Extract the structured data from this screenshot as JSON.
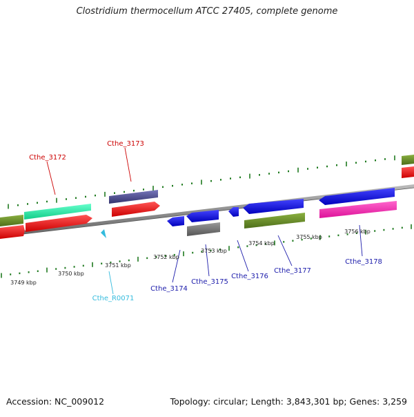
{
  "title": "Clostridium thermocellum ATCC 27405, complete genome",
  "footer": {
    "accession": "Accession: NC_009012",
    "stats": "Topology: circular; Length: 3,843,301 bp; Genes: 3,259"
  },
  "scale_labels": [
    "3749 kbp",
    "3750 kbp",
    "3751 kbp",
    "3752 kbp",
    "3753 kbp",
    "3754 kbp",
    "3755 kbp",
    "3756 kbp"
  ],
  "gene_labels": {
    "cthe_3172": "Cthe_3172",
    "cthe_3173": "Cthe_3173",
    "cthe_R0071": "Cthe_R0071",
    "cthe_3174": "Cthe_3174",
    "cthe_3175": "Cthe_3175",
    "cthe_3176": "Cthe_3176",
    "cthe_3177": "Cthe_3177",
    "cthe_3178": "Cthe_3178"
  },
  "colors": {
    "forward_label": "#cc0000",
    "reverse_label": "#1a1aaa",
    "rna_label": "#33bbdd",
    "tick": "#1f7a1f",
    "backbone": "#8a8a8a"
  }
}
